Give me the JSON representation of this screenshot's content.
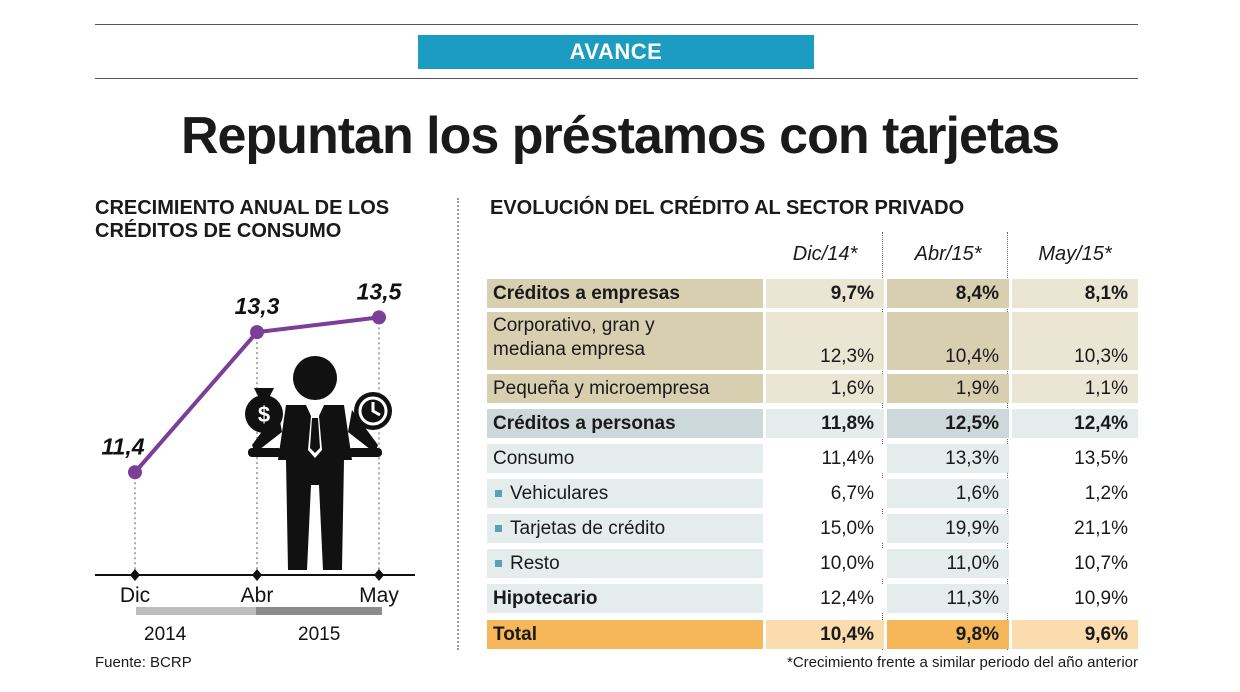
{
  "badge": "AVANCE",
  "headline": "Repuntan los préstamos con tarjetas",
  "left_title": "CRECIMIENTO ANUAL DE LOS CRÉDITOS DE CONSUMO",
  "right_title": "EVOLUCIÓN DEL CRÉDITO AL SECTOR PRIVADO",
  "source": "Fuente: BCRP",
  "footnote": "*Crecimiento frente a similar periodo del año anterior",
  "colors": {
    "accent": "#1b9cc0",
    "line": "#7b3f98",
    "tan": "#d8ceb0",
    "tan_light": "#ebe5d3",
    "grey_blue": "#ccd8d9",
    "grey_blue_light": "#e5ecec",
    "orange": "#f6b65a",
    "orange_light": "#fbdcae"
  },
  "chart_data": [
    {
      "type": "line",
      "title": "CRECIMIENTO ANUAL DE LOS CRÉDITOS DE CONSUMO",
      "categories": [
        "Dic",
        "Abr",
        "May"
      ],
      "values": [
        11.4,
        13.3,
        13.5
      ],
      "labels": [
        "11,4",
        "13,3",
        "13,5"
      ],
      "years": [
        "2014",
        "2015"
      ],
      "ylim": [
        10,
        14
      ],
      "unit": "%"
    },
    {
      "type": "table",
      "title": "EVOLUCIÓN DEL CRÉDITO AL SECTOR PRIVADO",
      "columns": [
        "Dic/14*",
        "Abr/15*",
        "May/15*"
      ],
      "rows": [
        {
          "label": "Créditos a empresas",
          "values": [
            "9,7%",
            "8,4%",
            "8,1%"
          ]
        },
        {
          "label": "Corporativo, gran y mediana empresa",
          "values": [
            "12,3%",
            "10,4%",
            "10,3%"
          ]
        },
        {
          "label": "Pequeña y microempresa",
          "values": [
            "1,6%",
            "1,9%",
            "1,1%"
          ]
        },
        {
          "label": "Créditos a personas",
          "values": [
            "11,8%",
            "12,5%",
            "12,4%"
          ]
        },
        {
          "label": "Consumo",
          "values": [
            "11,4%",
            "13,3%",
            "13,5%"
          ]
        },
        {
          "label": "Vehiculares",
          "values": [
            "6,7%",
            "1,6%",
            "1,2%"
          ]
        },
        {
          "label": "Tarjetas de crédito",
          "values": [
            "15,0%",
            "19,9%",
            "21,1%"
          ]
        },
        {
          "label": "Resto",
          "values": [
            "10,0%",
            "11,0%",
            "10,7%"
          ]
        },
        {
          "label": "Hipotecario",
          "values": [
            "12,4%",
            "11,3%",
            "10,9%"
          ]
        },
        {
          "label": "Total",
          "values": [
            "10,4%",
            "9,8%",
            "9,6%"
          ]
        }
      ]
    }
  ]
}
